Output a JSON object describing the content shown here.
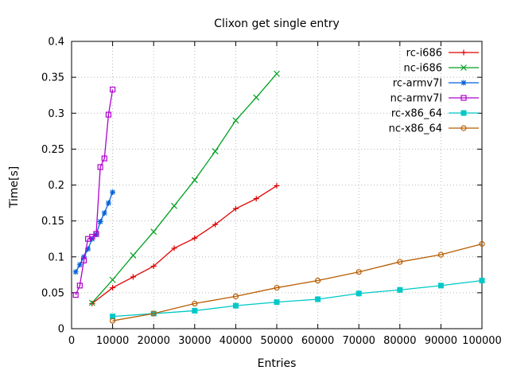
{
  "chart_data": {
    "type": "line",
    "title": "Clixon get single entry",
    "xlabel": "Entries",
    "ylabel": "Time[s]",
    "xlim": [
      0,
      100000
    ],
    "ylim": [
      0,
      0.4
    ],
    "grid": true,
    "legend_position": "top-right",
    "xticks": [
      0,
      10000,
      20000,
      30000,
      40000,
      50000,
      60000,
      70000,
      80000,
      90000,
      100000
    ],
    "xtick_labels": [
      "0",
      "10000",
      "20000",
      "30000",
      "40000",
      "50000",
      "60000",
      "70000",
      "80000",
      "90000",
      "100000"
    ],
    "yticks": [
      0,
      0.05,
      0.1,
      0.15,
      0.2,
      0.25,
      0.3,
      0.35,
      0.4
    ],
    "ytick_labels": [
      "0",
      "0.05",
      "0.1",
      "0.15",
      "0.2",
      "0.25",
      "0.3",
      "0.35",
      "0.4"
    ],
    "series": [
      {
        "name": "rc-i686",
        "color": "#e00000",
        "marker": "plus",
        "x": [
          5000,
          10000,
          15000,
          20000,
          25000,
          30000,
          35000,
          40000,
          45000,
          50000
        ],
        "y": [
          0.035,
          0.057,
          0.072,
          0.087,
          0.112,
          0.126,
          0.145,
          0.167,
          0.181,
          0.199
        ]
      },
      {
        "name": "nc-i686",
        "color": "#00a020",
        "marker": "cross",
        "x": [
          5000,
          10000,
          15000,
          20000,
          25000,
          30000,
          35000,
          40000,
          45000,
          50000
        ],
        "y": [
          0.036,
          0.068,
          0.102,
          0.135,
          0.171,
          0.207,
          0.247,
          0.29,
          0.322,
          0.355
        ]
      },
      {
        "name": "rc-armv7l",
        "color": "#0060d8",
        "marker": "asterisk",
        "x": [
          1000,
          2000,
          3000,
          4000,
          5000,
          6000,
          7000,
          8000,
          9000,
          10000
        ],
        "y": [
          0.079,
          0.089,
          0.1,
          0.111,
          0.125,
          0.131,
          0.149,
          0.161,
          0.175,
          0.19
        ]
      },
      {
        "name": "nc-armv7l",
        "color": "#b000d0",
        "marker": "square-open",
        "x": [
          1000,
          2000,
          3000,
          4000,
          5000,
          6000,
          7000,
          8000,
          9000,
          10000
        ],
        "y": [
          0.047,
          0.06,
          0.095,
          0.125,
          0.128,
          0.132,
          0.225,
          0.237,
          0.298,
          0.333
        ]
      },
      {
        "name": "rc-x86_64",
        "color": "#00c8c8",
        "marker": "square-filled",
        "x": [
          10000,
          20000,
          30000,
          40000,
          50000,
          60000,
          70000,
          80000,
          90000,
          100000
        ],
        "y": [
          0.017,
          0.021,
          0.025,
          0.032,
          0.037,
          0.041,
          0.049,
          0.054,
          0.06,
          0.067
        ]
      },
      {
        "name": "nc-x86_64",
        "color": "#b85c00",
        "marker": "circle-open",
        "x": [
          10000,
          20000,
          30000,
          40000,
          50000,
          60000,
          70000,
          80000,
          90000,
          100000
        ],
        "y": [
          0.011,
          0.021,
          0.035,
          0.045,
          0.057,
          0.067,
          0.079,
          0.093,
          0.103,
          0.118
        ]
      }
    ],
    "colors": {
      "grid": "#b8b8b8",
      "border": "#000000",
      "text": "#000000",
      "background": "#ffffff"
    }
  }
}
